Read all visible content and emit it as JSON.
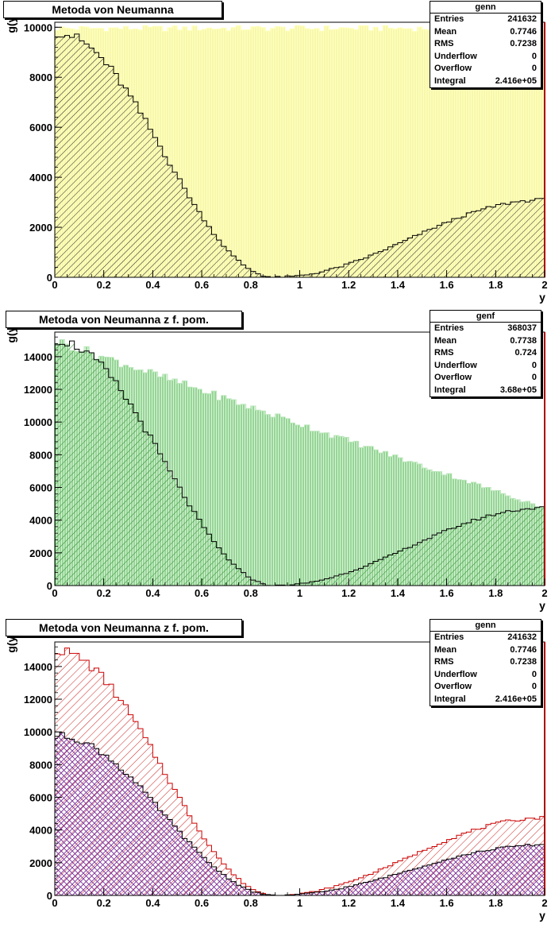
{
  "panels": [
    {
      "title": "Metoda von Neumanna",
      "stats": {
        "name": "genn",
        "rows": [
          {
            "label": "Entries",
            "value": "241632"
          },
          {
            "label": "Mean",
            "value": "0.7746"
          },
          {
            "label": "RMS",
            "value": "0.7238"
          },
          {
            "label": "Underflow",
            "value": "0"
          },
          {
            "label": "Overflow",
            "value": "0"
          },
          {
            "label": "Integral",
            "value": "2.416e+05"
          }
        ]
      }
    },
    {
      "title": "Metoda von Neumanna z f. pom.",
      "stats": {
        "name": "genf",
        "rows": [
          {
            "label": "Entries",
            "value": "368037"
          },
          {
            "label": "Mean",
            "value": "0.7738"
          },
          {
            "label": "RMS",
            "value": "0.724"
          },
          {
            "label": "Underflow",
            "value": "0"
          },
          {
            "label": "Overflow",
            "value": "0"
          },
          {
            "label": "Integral",
            "value": "3.68e+05"
          }
        ]
      }
    },
    {
      "title": "Metoda von Neumanna z f. pom.",
      "stats": {
        "name": "genn",
        "rows": [
          {
            "label": "Entries",
            "value": "241632"
          },
          {
            "label": "Mean",
            "value": "0.7746"
          },
          {
            "label": "RMS",
            "value": "0.7238"
          },
          {
            "label": "Underflow",
            "value": "0"
          },
          {
            "label": "Overflow",
            "value": "0"
          },
          {
            "label": "Integral",
            "value": "2.416e+05"
          }
        ]
      }
    }
  ],
  "chart_data": [
    {
      "type": "histogram",
      "xlabel": "y",
      "ylabel": "g(y)",
      "xlim": [
        0,
        2
      ],
      "ylim": [
        0,
        10200
      ],
      "xticks": [
        0,
        0.2,
        0.4,
        0.6,
        0.8,
        1,
        1.2,
        1.4,
        1.6,
        1.8,
        2
      ],
      "yticks": [
        0,
        2000,
        4000,
        6000,
        8000,
        10000
      ],
      "grid": false,
      "series": [
        {
          "role": "uniform",
          "color": "#ffffb8",
          "fill": "solid",
          "profile": "flat",
          "amplitude": 9950
        },
        {
          "role": "distribution",
          "color": "#000000",
          "fill": "hatch-diagonal",
          "profile": "g",
          "peak0": 9800,
          "end_value": 3100,
          "min_at": 0.9
        }
      ]
    },
    {
      "type": "histogram",
      "xlabel": "y",
      "ylabel": "g(y)",
      "xlim": [
        0,
        2
      ],
      "ylim": [
        0,
        15500
      ],
      "xticks": [
        0,
        0.2,
        0.4,
        0.6,
        0.8,
        1,
        1.2,
        1.4,
        1.6,
        1.8,
        2
      ],
      "yticks": [
        0,
        2000,
        4000,
        6000,
        8000,
        10000,
        12000,
        14000
      ],
      "grid": false,
      "series": [
        {
          "role": "auxiliary",
          "color": "#b8e6b8",
          "fill": "vertical-lines",
          "profile": "linear",
          "start_value": 15000,
          "end_value": 4750
        },
        {
          "role": "distribution",
          "color": "#000000",
          "fill": "hatch-diagonal-green",
          "profile": "g",
          "peak0": 15000,
          "end_value": 4750,
          "min_at": 0.9
        }
      ]
    },
    {
      "type": "histogram",
      "xlabel": "y",
      "ylabel": "g(y)",
      "xlim": [
        0,
        2
      ],
      "ylim": [
        0,
        15500
      ],
      "xticks": [
        0,
        0.2,
        0.4,
        0.6,
        0.8,
        1,
        1.2,
        1.4,
        1.6,
        1.8,
        2
      ],
      "yticks": [
        0,
        2000,
        4000,
        6000,
        8000,
        10000,
        12000,
        14000
      ],
      "grid": false,
      "series": [
        {
          "role": "genf",
          "color": "#cc0000",
          "fill": "hatch-diagonal-red",
          "profile": "g",
          "peak0": 15000,
          "end_value": 4750,
          "min_at": 0.9
        },
        {
          "role": "genn",
          "color": "#000000",
          "fill": "crosshatch-purple",
          "profile": "g",
          "peak0": 9800,
          "end_value": 3100,
          "min_at": 0.9
        }
      ]
    }
  ]
}
